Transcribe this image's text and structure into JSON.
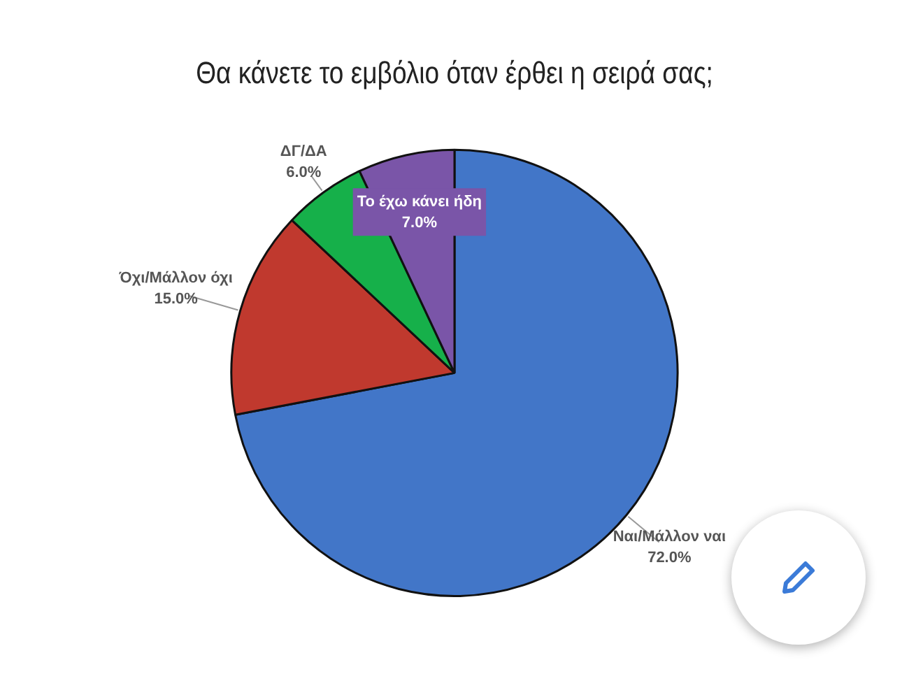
{
  "chart_data": {
    "type": "pie",
    "title": "Θα κάνετε το εμβόλιο όταν έρθει η σειρά σας;",
    "categories": [
      "Ναι/Μάλλον ναι",
      "Όχι/Μάλλον όχι",
      "ΔΓ/ΔΑ",
      "Το έχω κάνει ήδη"
    ],
    "values": [
      72,
      15,
      6,
      7
    ],
    "colors": [
      "#4276c8",
      "#c0392e",
      "#16b04a",
      "#7a55a8"
    ],
    "value_labels": [
      "72.0%",
      "15.0%",
      "6.0%",
      "7.0%"
    ],
    "legend": false
  }
}
